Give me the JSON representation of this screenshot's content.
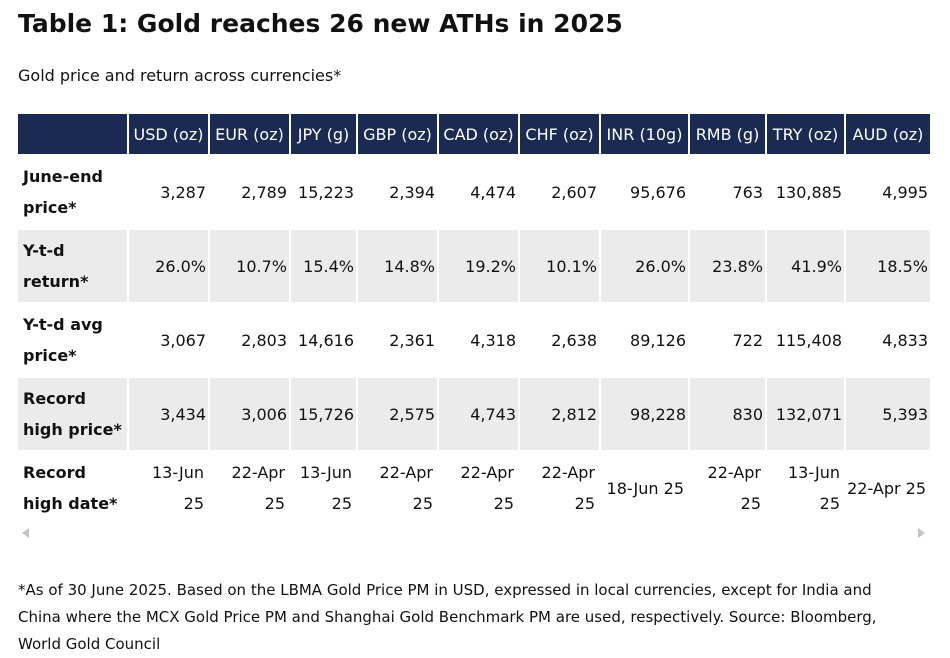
{
  "title": "Table 1: Gold reaches 26 new ATHs in 2025",
  "subtitle": "Gold price and return across currencies*",
  "table": {
    "columns": [
      "",
      "USD (oz)",
      "EUR (oz)",
      "JPY (g)",
      "GBP (oz)",
      "CAD (oz)",
      "CHF (oz)",
      "INR (10g)",
      "RMB (g)",
      "TRY (oz)",
      "AUD (oz)"
    ],
    "rows": [
      {
        "label": "June-end price*",
        "cells": [
          "3,287",
          "2,789",
          "15,223",
          "2,394",
          "4,474",
          "2,607",
          "95,676",
          "763",
          "130,885",
          "4,995"
        ]
      },
      {
        "label": "Y-t-d return*",
        "cells": [
          "26.0%",
          "10.7%",
          "15.4%",
          "14.8%",
          "19.2%",
          "10.1%",
          "26.0%",
          "23.8%",
          "41.9%",
          "18.5%"
        ]
      },
      {
        "label": "Y-t-d avg price*",
        "cells": [
          "3,067",
          "2,803",
          "14,616",
          "2,361",
          "4,318",
          "2,638",
          "89,126",
          "722",
          "115,408",
          "4,833"
        ]
      },
      {
        "label": "Record high price*",
        "cells": [
          "3,434",
          "3,006",
          "15,726",
          "2,575",
          "4,743",
          "2,812",
          "98,228",
          "830",
          "132,071",
          "5,393"
        ]
      },
      {
        "label": "Record high date*",
        "cells": [
          "13-Jun 25",
          "22-Apr 25",
          "13-Jun 25",
          "22-Apr 25",
          "22-Apr 25",
          "22-Apr 25",
          "18-Jun 25",
          "22-Apr 25",
          "13-Jun 25",
          "22-Apr 25"
        ]
      }
    ]
  },
  "footnote": "*As of 30 June 2025. Based on the LBMA Gold Price PM in USD, expressed in local currencies, except for India and China where the MCX Gold Price PM and Shanghai Gold Benchmark PM are used, respectively. Source: Bloomberg, World Gold Council",
  "colors": {
    "header_bg": "#1b2a52",
    "row_shade": "#ebebeb"
  },
  "icons": {
    "scroll_left": "triangle-left",
    "scroll_right": "triangle-right"
  }
}
